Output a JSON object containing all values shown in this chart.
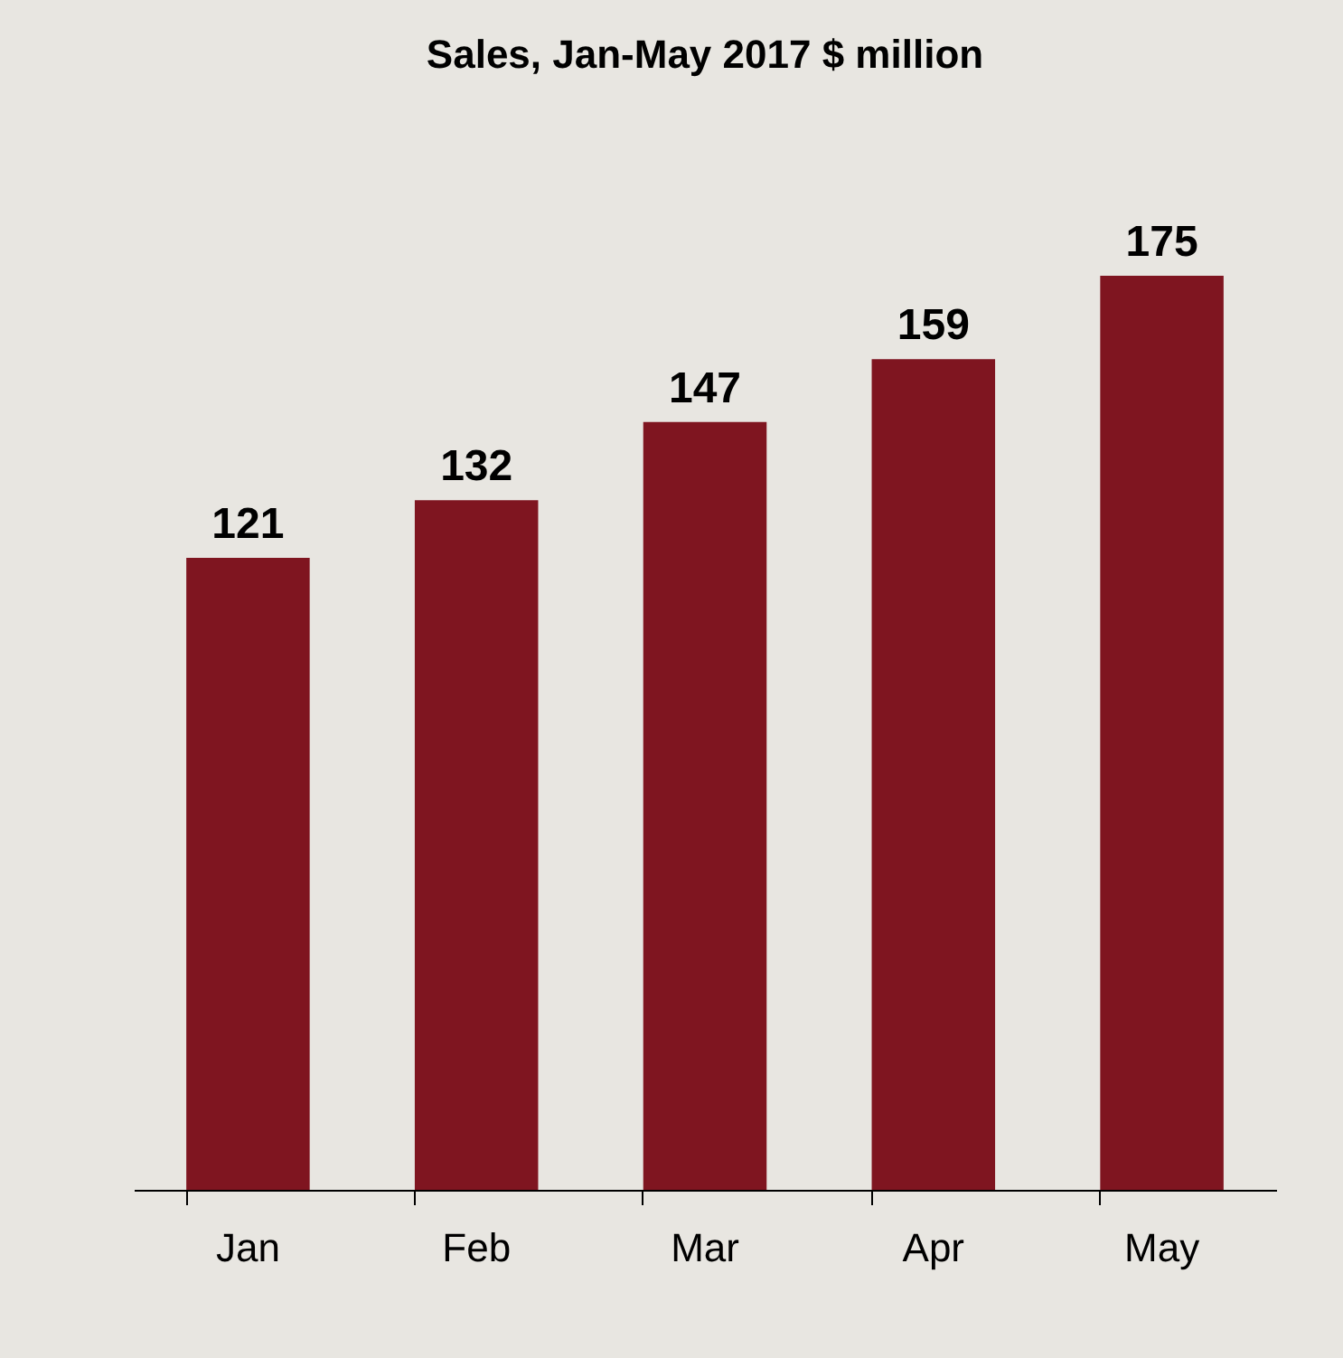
{
  "chart_data": {
    "type": "bar",
    "title": "Sales, Jan-May 2017 $ million",
    "categories": [
      "Jan",
      "Feb",
      "Mar",
      "Apr",
      "May"
    ],
    "values": [
      121,
      132,
      147,
      159,
      175
    ],
    "color": "#7f1520",
    "data_labels": true
  }
}
